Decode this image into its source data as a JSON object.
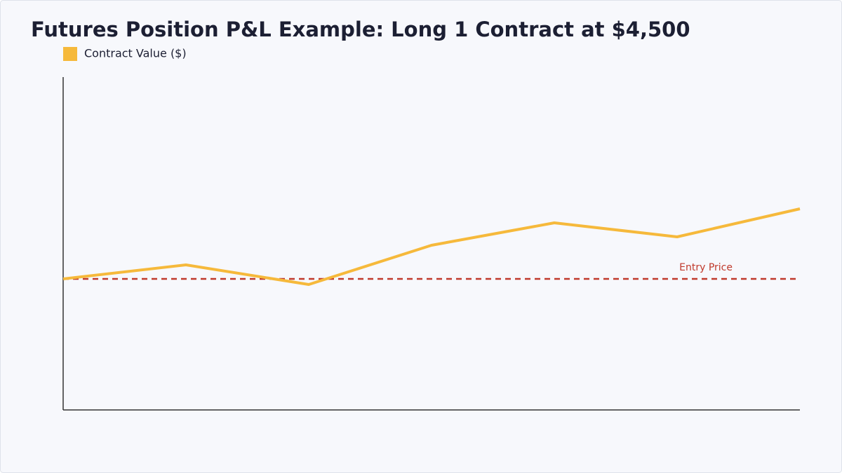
{
  "chart_data": {
    "type": "line",
    "title": "Futures Position P&L Example: Long 1 Contract at $4,500",
    "categories": [
      null,
      null,
      null,
      null,
      null,
      null,
      null
    ],
    "series": [
      {
        "name": "Contract Value ($)",
        "color": "#f6b93b",
        "values": [
          4500,
          4550,
          4480,
          4620,
          4700,
          4650,
          4750
        ]
      }
    ],
    "ylim": [
      4000,
      5200
    ],
    "reference_line": {
      "value": 4500,
      "label": "Entry Price",
      "color": "#c0392b"
    },
    "legend": "top-left"
  }
}
